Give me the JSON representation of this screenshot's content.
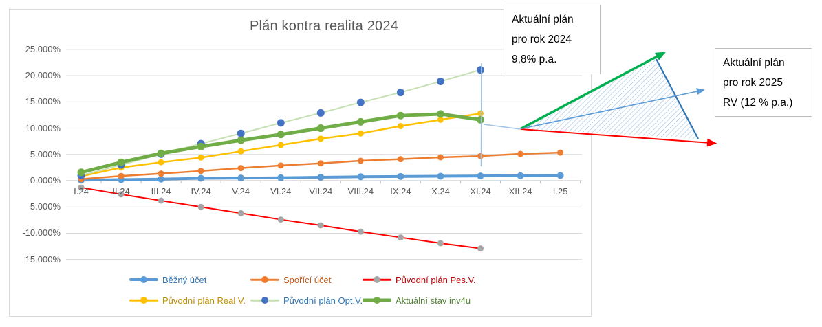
{
  "chart_data": {
    "type": "line",
    "title": "Plán kontra realita 2024",
    "xlabel": "",
    "ylabel": "",
    "ylim": [
      -15,
      25
    ],
    "grid": true,
    "legend_position": "bottom",
    "categories": [
      "I.24",
      "II.24",
      "III.24",
      "IV.24",
      "V.24",
      "VI.24",
      "VII.24",
      "VIII.24",
      "IX.24",
      "X.24",
      "XI.24",
      "XII.24",
      "I.25"
    ],
    "series": [
      {
        "name": "Běžný účet",
        "color": "#5B9BD5",
        "marker_color": "#5B9BD5",
        "label_color": "#2E75B6",
        "values": [
          0.1,
          0.2,
          0.3,
          0.45,
          0.5,
          0.55,
          0.65,
          0.75,
          0.8,
          0.85,
          0.9,
          0.95,
          1.0
        ]
      },
      {
        "name": "Spořící účet",
        "color": "#ED7D31",
        "marker_color": "#ED7D31",
        "label_color": "#C55A11",
        "values": [
          0.3,
          0.9,
          1.35,
          1.85,
          2.4,
          2.9,
          3.3,
          3.8,
          4.1,
          4.45,
          4.7,
          5.1,
          5.35
        ]
      },
      {
        "name": "Původní plán Pes.V.",
        "color": "#FF0000",
        "marker_color": "#A6A6A6",
        "label_color": "#C00000",
        "values": [
          -1.3,
          -2.6,
          -3.8,
          -5.0,
          -6.2,
          -7.4,
          -8.5,
          -9.7,
          -10.8,
          -11.9,
          -12.9
        ]
      },
      {
        "name": "Původní plán Real V.",
        "color": "#FFC000",
        "marker_color": "#FFC000",
        "label_color": "#BF8F00",
        "values": [
          0.85,
          2.5,
          3.5,
          4.4,
          5.6,
          6.8,
          8.0,
          9.0,
          10.4,
          11.6,
          12.8
        ]
      },
      {
        "name": "Původní plán Opt.V.",
        "color": "#C6E0B4",
        "marker_color": "#4472C4",
        "label_color": "#2E75B6",
        "values": [
          1.0,
          3.0,
          5.05,
          7.05,
          9.0,
          11.0,
          12.9,
          14.9,
          16.8,
          18.9,
          21.1
        ]
      },
      {
        "name": "Aktuální stav inv4u",
        "color": "#70AD47",
        "marker_color": "#70AD47",
        "label_color": "#548235",
        "values": [
          1.6,
          3.5,
          5.2,
          6.5,
          7.7,
          8.8,
          10.0,
          11.2,
          12.4,
          12.7,
          11.6
        ]
      }
    ]
  },
  "y_axis": {
    "tick_labels": [
      "25.000%",
      "20.000%",
      "15.000%",
      "10.000%",
      "5.000%",
      "0.000%",
      "-5.000%",
      "-10.000%",
      "-15.000%"
    ],
    "tick_values": [
      25,
      20,
      15,
      10,
      5,
      0,
      -5,
      -10,
      -15
    ]
  },
  "annotations": {
    "box_2024": {
      "text": "Aktuální plán\npro rok 2024\n9,8% p.a."
    },
    "box_2025": {
      "text": "Aktuální plán\npro rok 2025\nRV (12 % p.a.)"
    }
  },
  "colors": {
    "title_text": "#595959",
    "axis_text": "#595959",
    "gridline": "#D9D9D9",
    "axis_line": "#BFBFBF",
    "callout_border": "#BFBFBF",
    "leader_line": "#9DC3E6",
    "hatch": "#9DC3E6",
    "triangle_edge": "#2E75B6",
    "arrow_green": "#00B050",
    "arrow_red": "#FF0000",
    "arrow_blue": "#5B9BD5"
  }
}
